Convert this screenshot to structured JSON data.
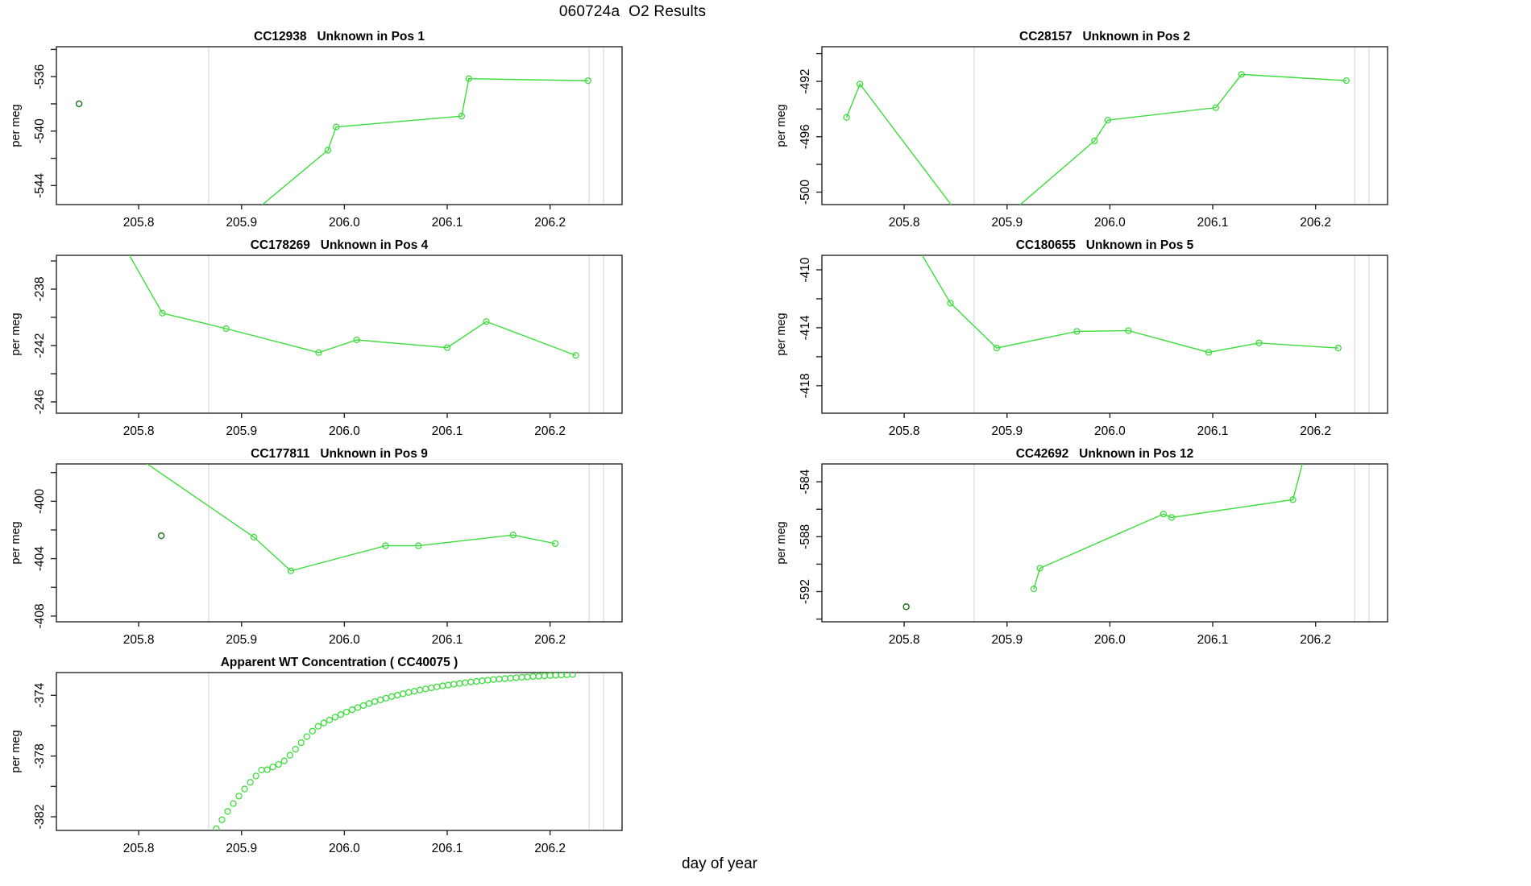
{
  "title": "060724a  O2 Results",
  "xlabel": "day of year",
  "ylabel": "per meg",
  "colors": {
    "series": "#3cdd3c",
    "dark_point": "#1b6f1b",
    "refline": "#dcdcdc",
    "axis": "#262626",
    "text": "#000000"
  },
  "axes": {
    "xlim": [
      205.72,
      206.27
    ],
    "xticks": [
      205.8,
      205.9,
      206.0,
      206.1,
      206.2
    ],
    "xtick_labels": [
      "205.8",
      "205.9",
      "206.0",
      "206.1",
      "206.2"
    ],
    "reflines": [
      205.868,
      206.238,
      206.252
    ]
  },
  "chart_data": [
    {
      "id": "pos1",
      "title": "CC12938   Unknown in Pos 1",
      "type": "line",
      "ylabel": "per meg",
      "ylim": [
        -545.4,
        -533.8
      ],
      "yticks": [
        -536,
        -540,
        -544
      ],
      "yticks_minor": [
        -534,
        -538,
        -542
      ],
      "line": [
        [
          205.906,
          -546.3
        ],
        [
          205.984,
          -541.4
        ],
        [
          205.992,
          -539.7
        ],
        [
          206.114,
          -538.9
        ],
        [
          206.121,
          -536.15
        ],
        [
          206.237,
          -536.3
        ]
      ],
      "isolated_points": [
        [
          205.742,
          -538.0
        ]
      ]
    },
    {
      "id": "pos2",
      "title": "CC28157   Unknown in Pos 2",
      "type": "line",
      "ylabel": "per meg",
      "ylim": [
        -500.9,
        -489.5
      ],
      "yticks": [
        -492,
        -496,
        -500
      ],
      "yticks_minor": [
        -490,
        -494,
        -498
      ],
      "line": [
        [
          205.744,
          -494.6
        ],
        [
          205.757,
          -492.2
        ],
        [
          205.872,
          -503.5
        ],
        [
          205.985,
          -496.3
        ],
        [
          205.998,
          -494.8
        ],
        [
          206.103,
          -493.9
        ],
        [
          206.128,
          -491.5
        ],
        [
          206.23,
          -491.95
        ]
      ],
      "isolated_points": []
    },
    {
      "id": "pos4",
      "title": "CC178269   Unknown in Pos 4",
      "type": "line",
      "ylabel": "per meg",
      "ylim": [
        -246.8,
        -235.6
      ],
      "yticks": [
        -238,
        -242,
        -246
      ],
      "yticks_minor": [
        -236,
        -240,
        -244
      ],
      "line": [
        [
          205.78,
          -234.2
        ],
        [
          205.823,
          -239.7
        ],
        [
          205.885,
          -240.8
        ],
        [
          205.975,
          -242.5
        ],
        [
          206.012,
          -241.6
        ],
        [
          206.1,
          -242.15
        ],
        [
          206.138,
          -240.3
        ],
        [
          206.225,
          -242.7
        ]
      ],
      "isolated_points": []
    },
    {
      "id": "pos5",
      "title": "CC180655   Unknown in Pos 5",
      "type": "line",
      "ylabel": "per meg",
      "ylim": [
        -419.9,
        -409.0
      ],
      "yticks": [
        -410,
        -414,
        -418
      ],
      "yticks_minor": [
        -412,
        -416
      ],
      "line": [
        [
          205.805,
          -407.5
        ],
        [
          205.845,
          -412.3
        ],
        [
          205.89,
          -415.4
        ],
        [
          205.968,
          -414.25
        ],
        [
          206.018,
          -414.2
        ],
        [
          206.096,
          -415.7
        ],
        [
          206.145,
          -415.05
        ],
        [
          206.222,
          -415.4
        ]
      ],
      "isolated_points": []
    },
    {
      "id": "pos9",
      "title": "CC177811   Unknown in Pos 9",
      "type": "line",
      "ylabel": "per meg",
      "ylim": [
        -408.4,
        -397.4
      ],
      "yticks": [
        -400,
        -404,
        -408
      ],
      "yticks_minor": [
        -398,
        -402,
        -406
      ],
      "line": [
        [
          205.79,
          -396.5
        ],
        [
          205.912,
          -402.5
        ],
        [
          205.948,
          -404.85
        ],
        [
          206.04,
          -403.1
        ],
        [
          206.072,
          -403.1
        ],
        [
          206.164,
          -402.35
        ],
        [
          206.205,
          -402.95
        ]
      ],
      "isolated_points": [
        [
          205.822,
          -402.4
        ]
      ]
    },
    {
      "id": "pos12",
      "title": "CC42692   Unknown in Pos 12",
      "type": "line",
      "ylabel": "per meg",
      "ylim": [
        -594.2,
        -582.7
      ],
      "yticks": [
        -584,
        -588,
        -592
      ],
      "yticks_minor": [
        -586,
        -590,
        -594
      ],
      "line": [
        [
          205.926,
          -591.8
        ],
        [
          205.932,
          -590.3
        ],
        [
          206.052,
          -586.35
        ],
        [
          206.06,
          -586.6
        ],
        [
          206.178,
          -585.3
        ],
        [
          206.193,
          -581.0
        ]
      ],
      "isolated_points": [
        [
          205.802,
          -593.1
        ]
      ]
    },
    {
      "id": "wt-concentration",
      "title": "Apparent WT Concentration ( CC40075 )",
      "type": "scatter",
      "ylabel": "per meg",
      "ylim": [
        -382.9,
        -372.5
      ],
      "yticks": [
        -374,
        -378,
        -382
      ],
      "yticks_minor": [
        -376,
        -380
      ],
      "points": [
        [
          205.8755,
          -382.79
        ],
        [
          205.881,
          -382.2
        ],
        [
          205.8865,
          -381.65
        ],
        [
          205.892,
          -381.13
        ],
        [
          205.8975,
          -380.64
        ],
        [
          205.903,
          -380.17
        ],
        [
          205.9085,
          -379.73
        ],
        [
          205.914,
          -379.31
        ],
        [
          205.9195,
          -378.92
        ],
        [
          205.925,
          -378.9
        ],
        [
          205.9305,
          -378.72
        ],
        [
          205.936,
          -378.55
        ],
        [
          205.9415,
          -378.32
        ],
        [
          205.947,
          -377.95
        ],
        [
          205.9525,
          -377.55
        ],
        [
          205.958,
          -377.12
        ],
        [
          205.9635,
          -376.72
        ],
        [
          205.969,
          -376.36
        ],
        [
          205.9745,
          -376.04
        ],
        [
          205.98,
          -375.82
        ],
        [
          205.9855,
          -375.63
        ],
        [
          205.991,
          -375.44
        ],
        [
          205.9965,
          -375.27
        ],
        [
          206.002,
          -375.1
        ],
        [
          206.0075,
          -374.95
        ],
        [
          206.013,
          -374.81
        ],
        [
          206.0185,
          -374.67
        ],
        [
          206.024,
          -374.54
        ],
        [
          206.0295,
          -374.41
        ],
        [
          206.035,
          -374.3
        ],
        [
          206.0405,
          -374.19
        ],
        [
          206.046,
          -374.08
        ],
        [
          206.0515,
          -373.99
        ],
        [
          206.057,
          -373.9
        ],
        [
          206.0625,
          -373.81
        ],
        [
          206.068,
          -373.73
        ],
        [
          206.0735,
          -373.65
        ],
        [
          206.079,
          -373.58
        ],
        [
          206.0845,
          -373.51
        ],
        [
          206.09,
          -373.44
        ],
        [
          206.0955,
          -373.38
        ],
        [
          206.101,
          -373.32
        ],
        [
          206.1065,
          -373.27
        ],
        [
          206.112,
          -373.22
        ],
        [
          206.1175,
          -373.17
        ],
        [
          206.123,
          -373.12
        ],
        [
          206.1285,
          -373.08
        ],
        [
          206.134,
          -373.04
        ],
        [
          206.1395,
          -373.0
        ],
        [
          206.145,
          -372.96
        ],
        [
          206.1505,
          -372.93
        ],
        [
          206.156,
          -372.9
        ],
        [
          206.1615,
          -372.87
        ],
        [
          206.167,
          -372.84
        ],
        [
          206.1725,
          -372.81
        ],
        [
          206.178,
          -372.79
        ],
        [
          206.1835,
          -372.76
        ],
        [
          206.189,
          -372.74
        ],
        [
          206.1945,
          -372.72
        ],
        [
          206.2,
          -372.7
        ],
        [
          206.2055,
          -372.68
        ],
        [
          206.211,
          -372.66
        ],
        [
          206.2165,
          -372.64
        ],
        [
          206.222,
          -372.62
        ]
      ],
      "isolated_points": []
    }
  ]
}
